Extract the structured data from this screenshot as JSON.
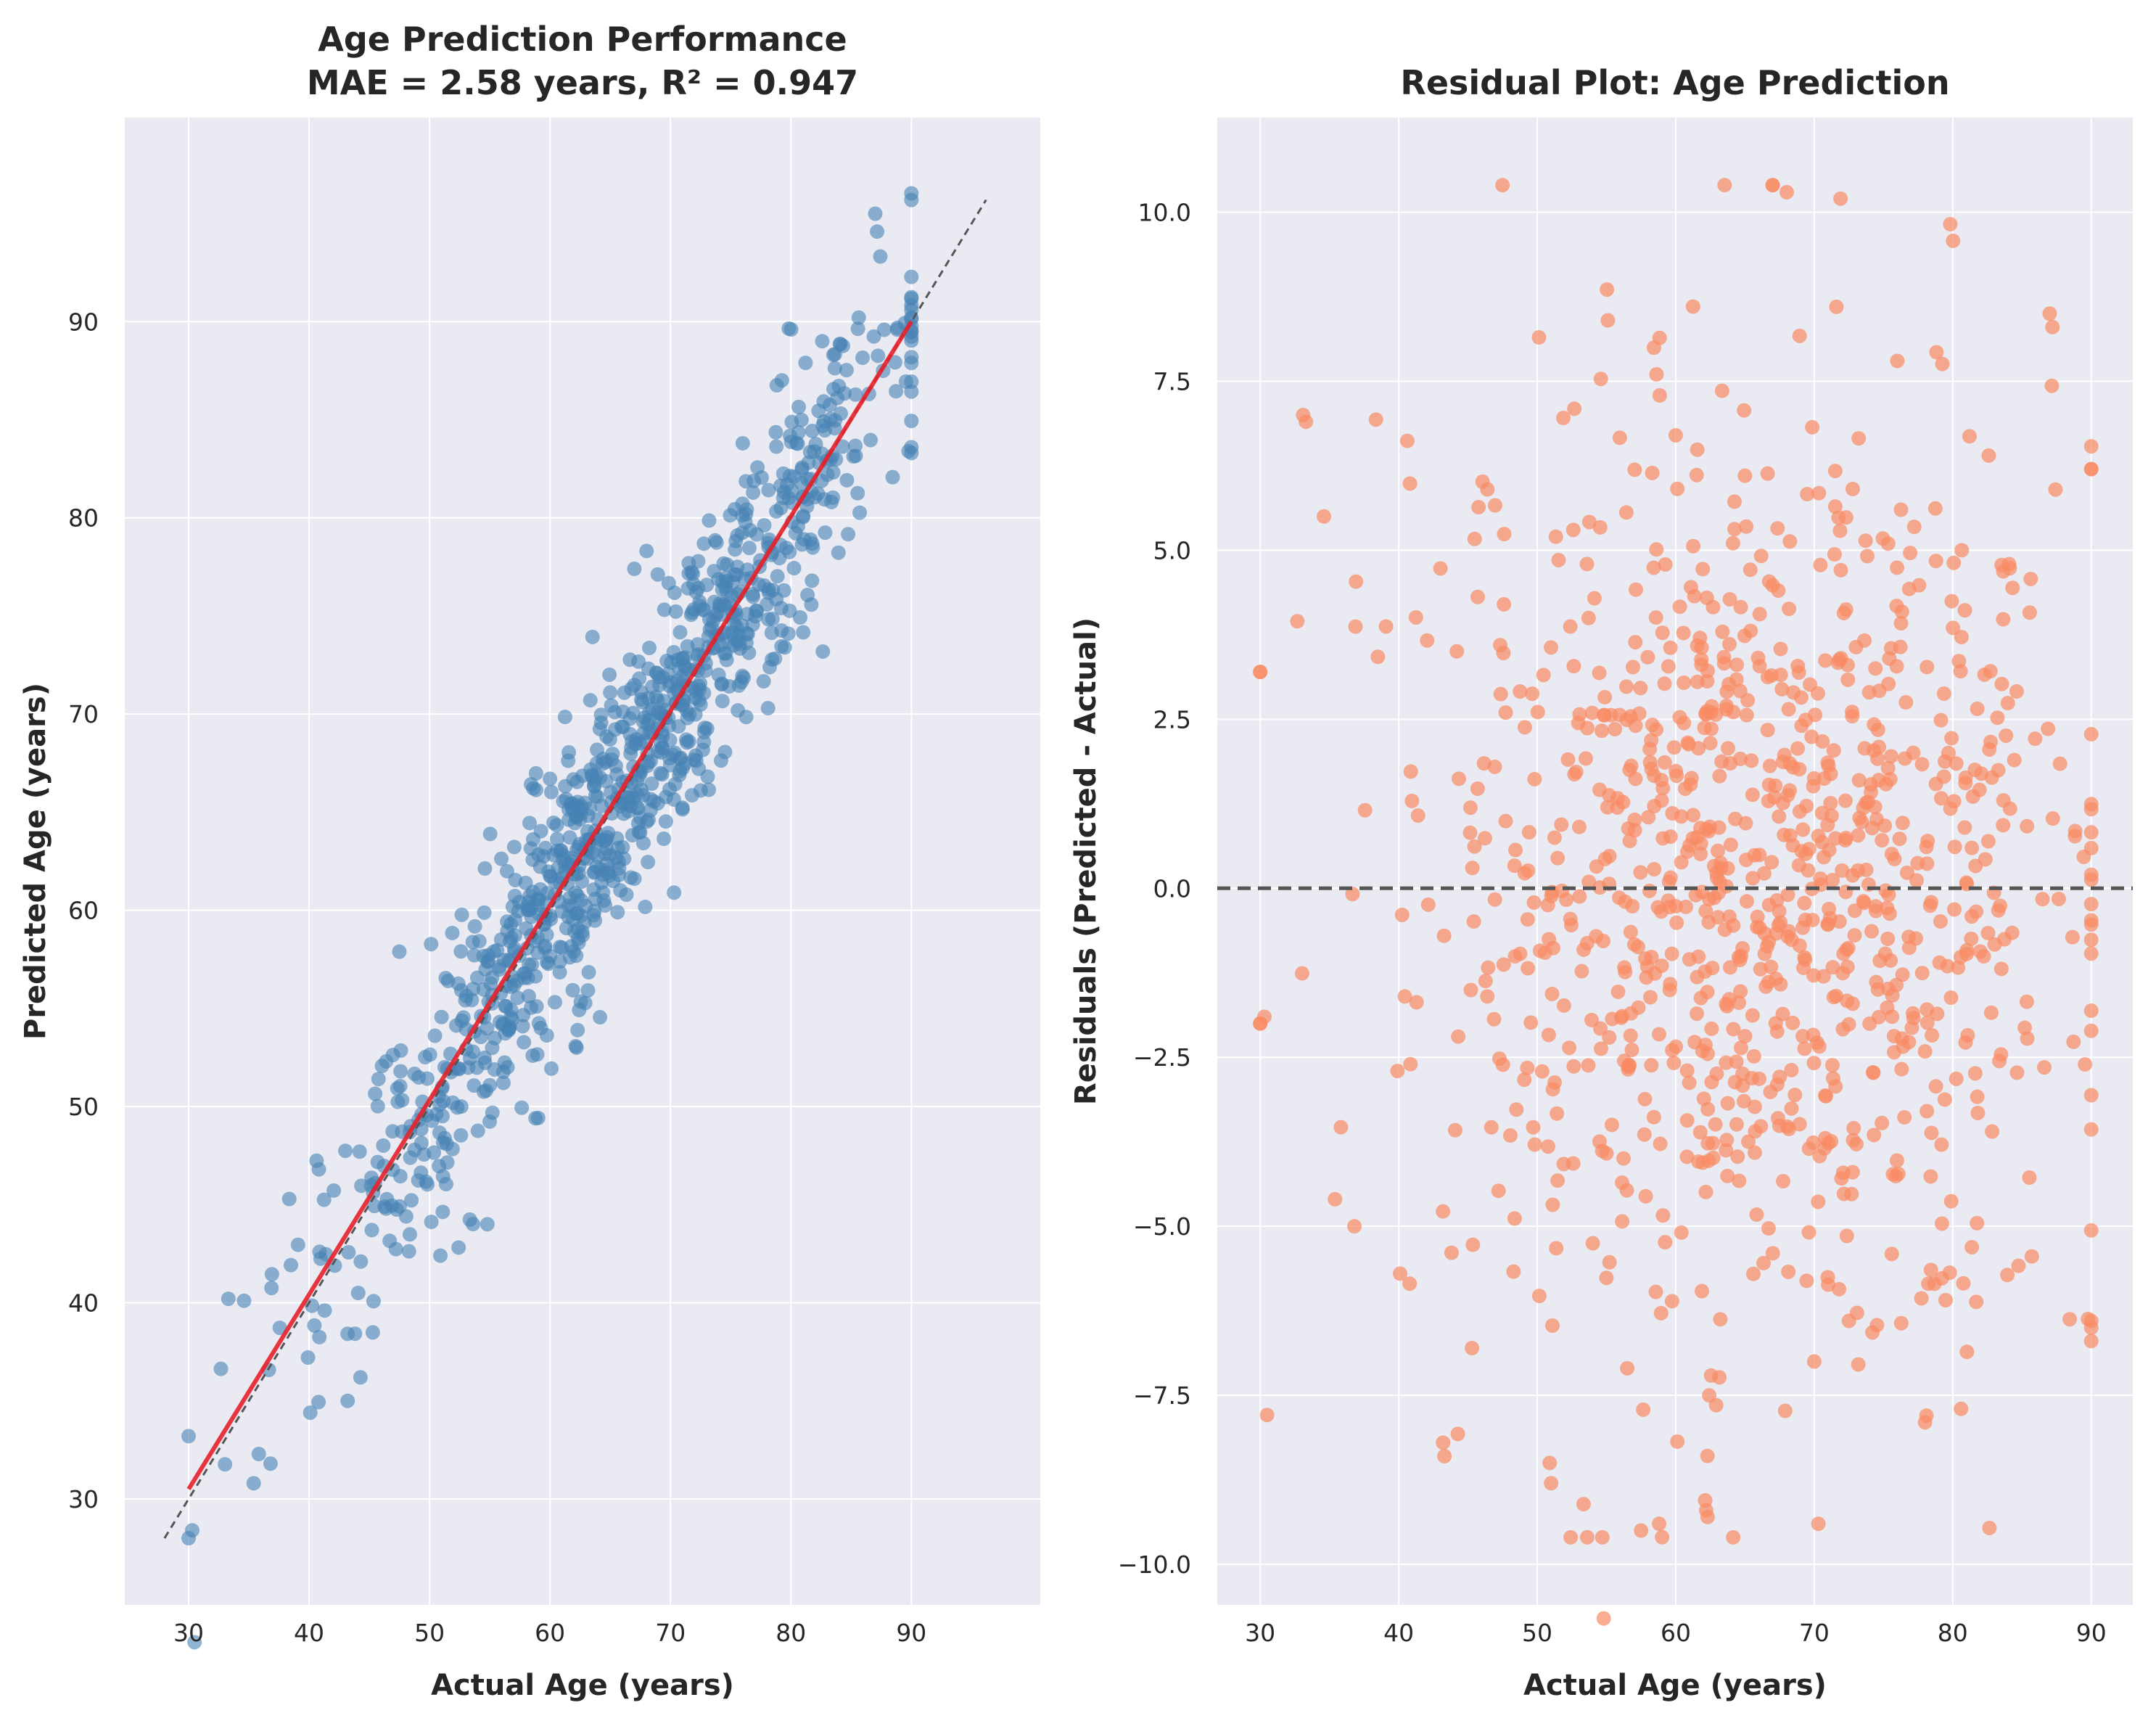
{
  "chart_data": [
    {
      "type": "scatter",
      "title_line1": "Age Prediction Performance",
      "title_line2": "MAE = 2.58 years, R² = 0.947",
      "xlabel": "Actual Age (years)",
      "ylabel": "Predicted Age (years)",
      "xlim": [
        24.7,
        100.7
      ],
      "ylim": [
        24.6,
        100.4
      ],
      "xticks": [
        "30",
        "40",
        "50",
        "60",
        "70",
        "80",
        "90"
      ],
      "yticks": [
        "30",
        "40",
        "50",
        "60",
        "70",
        "80",
        "90"
      ],
      "grid": true,
      "point_color": "#4682b4",
      "identity_line": {
        "x": [
          28,
          96.2
        ],
        "y": [
          28,
          96.2
        ],
        "style": "dashed",
        "color": "#555555"
      },
      "fit_line": {
        "x": [
          30,
          90
        ],
        "y": [
          30.5,
          90.0
        ],
        "color": "#e8202a"
      },
      "summary": {
        "n_points": 1000,
        "mean_offset": 0,
        "spread_sd": 3.2,
        "ceiling_x": 90
      },
      "points_sample": [
        {
          "x": 30,
          "y": 33.2
        },
        {
          "x": 30,
          "y": 28.0
        },
        {
          "x": 30.3,
          "y": 28.4
        },
        {
          "x": 33.3,
          "y": 40.2
        },
        {
          "x": 34.6,
          "y": 40.1
        },
        {
          "x": 35.4,
          "y": 30.8
        },
        {
          "x": 36.8,
          "y": 31.8
        },
        {
          "x": 40.1,
          "y": 34.4
        },
        {
          "x": 43.2,
          "y": 35.0
        },
        {
          "x": 46.4,
          "y": 52.3
        },
        {
          "x": 50.9,
          "y": 42.4
        },
        {
          "x": 54.8,
          "y": 44.0
        },
        {
          "x": 58.8,
          "y": 49.4
        },
        {
          "x": 62.2,
          "y": 53.0
        },
        {
          "x": 60.0,
          "y": 66.7
        },
        {
          "x": 67.0,
          "y": 77.4
        },
        {
          "x": 70.3,
          "y": 60.9
        },
        {
          "x": 78.1,
          "y": 70.3
        },
        {
          "x": 76.0,
          "y": 83.8
        },
        {
          "x": 82.6,
          "y": 89.0
        },
        {
          "x": 87.0,
          "y": 95.5
        },
        {
          "x": 90,
          "y": 96.2
        },
        {
          "x": 90,
          "y": 83.6
        }
      ]
    },
    {
      "type": "scatter",
      "title": "Residual Plot: Age Prediction",
      "xlabel": "Actual Age (years)",
      "ylabel": "Residuals (Predicted - Actual)",
      "xlim": [
        26.9,
        93.0
      ],
      "ylim": [
        -10.6,
        11.4
      ],
      "xticks": [
        "30",
        "40",
        "50",
        "60",
        "70",
        "80",
        "90"
      ],
      "yticks": [
        "10.0",
        "7.5",
        "5.0",
        "2.5",
        "0.0",
        "−2.5",
        "−5.0",
        "−7.5",
        "−10.0"
      ],
      "ytick_values": [
        10.0,
        7.5,
        5.0,
        2.5,
        0.0,
        -2.5,
        -5.0,
        -7.5,
        -10.0
      ],
      "grid": true,
      "point_color": "#fa8a64",
      "zero_line": {
        "y": 0,
        "style": "dashed",
        "color": "#555555"
      },
      "summary": {
        "n_points": 1000,
        "mean": 0,
        "spread_sd": 3.2,
        "ceiling_x": 90
      },
      "points_sample": [
        {
          "x": 67.0,
          "y": 10.4
        },
        {
          "x": 71.9,
          "y": 10.2
        },
        {
          "x": 33.1,
          "y": 7.0
        },
        {
          "x": 55.1,
          "y": 8.4
        },
        {
          "x": 71.6,
          "y": 8.6
        },
        {
          "x": 87.2,
          "y": 8.3
        },
        {
          "x": 30.0,
          "y": 3.2
        },
        {
          "x": 30.0,
          "y": -2.0
        },
        {
          "x": 43.3,
          "y": -8.4
        },
        {
          "x": 51.0,
          "y": -8.8
        },
        {
          "x": 54.7,
          "y": -9.6
        },
        {
          "x": 57.5,
          "y": -9.5
        },
        {
          "x": 62.3,
          "y": -9.3
        },
        {
          "x": 78.0,
          "y": -7.9
        },
        {
          "x": 80.6,
          "y": -7.7
        },
        {
          "x": 90.0,
          "y": 6.2
        },
        {
          "x": 90.0,
          "y": -6.5
        },
        {
          "x": 70.0,
          "y": -7.0
        },
        {
          "x": 56.5,
          "y": -7.1
        }
      ]
    }
  ]
}
